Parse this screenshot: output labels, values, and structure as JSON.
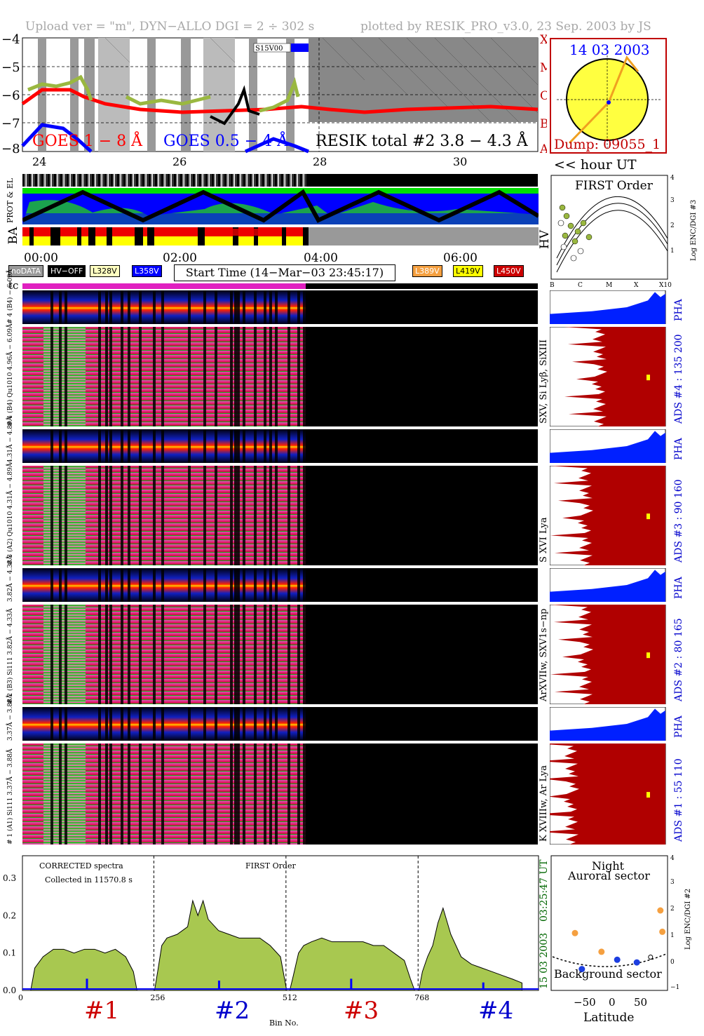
{
  "header": {
    "left": "Upload ver = \"m\", DYN−ALLO DGI =   2 ÷ 302 s",
    "right": "plotted by RESIK_PRO_v3.0, 23 Sep. 2003 by JS"
  },
  "goes": {
    "ytick_labels": [
      "−4",
      "−5",
      "−6",
      "−7",
      "−8"
    ],
    "xtick_labels": [
      "24",
      "26",
      "28",
      "30"
    ],
    "right_letters": [
      "X",
      "M",
      "C",
      "B",
      "A"
    ],
    "legend_goes1": "GOES 1 − 8 Å",
    "legend_goes2": "GOES 0.5 − 4 Å",
    "legend_resik": "RESIK total #2  3.8 − 4.3 Å",
    "tag": "S15V00",
    "hour_label": "<< hour UT",
    "colors": {
      "goes1": "#ff0000",
      "goes2": "#0000ff",
      "resik": "#000000"
    }
  },
  "sun": {
    "date": "14 03 2003",
    "dump": "Dump: 09055_1"
  },
  "status": {
    "left_labels": [
      "PROT & EL",
      "BA"
    ],
    "hv": "HV",
    "time_ticks": [
      "00:00",
      "02:00",
      "04:00",
      "06:00"
    ],
    "badges": [
      "noDATA",
      "HV−OFF",
      "L328V",
      "L358V",
      "L389V",
      "L419V",
      "L450V"
    ],
    "start_time": "Start Time (14−Mar−03 23:45:17)",
    "tc": "tc"
  },
  "first_order": {
    "title": "FIRST Order",
    "ylabel": "Log ENC/DGI #3",
    "yticks": [
      "1",
      "2",
      "3",
      "4"
    ],
    "xticks": [
      "B",
      "C",
      "M",
      "X",
      "X10"
    ]
  },
  "channels": [
    {
      "pha_label": "# 4 (B4)  − 6.09Å",
      "main_label": "# 4 (B4) Qu1010 4.96Å − 6.09Å",
      "line": "SXV, Si Lyβ, SiXIII",
      "ads": "ADS #4 :   135 200",
      "pha": "PHA"
    },
    {
      "pha_label": "4.31Å − 4.89Å",
      "main_label": "# 3 (A2) Qu1010  4.31Å − 4.89Å",
      "line": "S XVI Lya",
      "ads": "ADS #3 :    90 160",
      "pha": "PHA"
    },
    {
      "pha_label": "3.82Å − 4.33Å",
      "main_label": "# 2 (B3) Si111  3.82Å − 4.33Å",
      "line": "ArXVIIw, SXV1s−np",
      "ads": "ADS #2 :    80 165",
      "pha": "PHA"
    },
    {
      "pha_label": "3.37Å − 3.88Å",
      "main_label": "# 1 (A1) Si111  3.37Å − 3.88Å",
      "line": "K XVIIIw, Ar Lya",
      "ads": "ADS #1 :    55 110",
      "pha": "PHA"
    }
  ],
  "spectrum": {
    "title": "CORRECTED spectra",
    "collected": "Collected in 11570.8 s",
    "first_order": "FIRST Order",
    "xlabel": "Bin No.",
    "side_time": "03:25:47 UT",
    "side_date": "15 03 2003",
    "ch_labels": [
      "#1",
      "#2",
      "#3",
      "#4"
    ],
    "ch_colors": [
      "#cc0000",
      "#0000cc",
      "#cc0000",
      "#0000cc"
    ]
  },
  "latitude": {
    "night": "Night",
    "auroral": "Auroral sector",
    "background": "Background sector",
    "xlabel": "Latitude",
    "ylabel": "Log ENC/DGI #2",
    "xticks": [
      "−50",
      "0",
      "50"
    ],
    "yticks": [
      "−1",
      "0",
      "1",
      "2",
      "3",
      "4"
    ]
  },
  "chart_data": {
    "type": "area",
    "x": [
      0,
      8,
      16,
      24,
      40,
      60,
      80,
      100,
      120,
      140,
      160,
      180,
      200,
      215,
      222,
      230,
      240,
      256,
      262,
      270,
      280,
      300,
      320,
      330,
      340,
      350,
      360,
      380,
      400,
      420,
      440,
      460,
      480,
      500,
      512,
      518,
      525,
      535,
      545,
      560,
      580,
      600,
      620,
      640,
      660,
      680,
      700,
      720,
      740,
      752,
      760,
      768,
      775,
      785,
      795,
      805,
      815,
      830,
      850,
      870,
      890,
      910,
      930,
      950,
      968
    ],
    "values": [
      0.0,
      0.0,
      0.0,
      0.06,
      0.09,
      0.11,
      0.11,
      0.1,
      0.11,
      0.11,
      0.1,
      0.11,
      0.09,
      0.05,
      0.0,
      0.0,
      0.0,
      0.0,
      0.05,
      0.12,
      0.14,
      0.15,
      0.17,
      0.24,
      0.2,
      0.24,
      0.19,
      0.16,
      0.15,
      0.14,
      0.14,
      0.14,
      0.12,
      0.09,
      0.0,
      0.0,
      0.04,
      0.1,
      0.12,
      0.13,
      0.14,
      0.13,
      0.13,
      0.13,
      0.13,
      0.12,
      0.12,
      0.1,
      0.08,
      0.03,
      0.0,
      0.0,
      0.05,
      0.09,
      0.12,
      0.18,
      0.22,
      0.15,
      0.09,
      0.07,
      0.06,
      0.05,
      0.04,
      0.03,
      0.02
    ],
    "xticks": [
      0,
      256,
      512,
      768
    ],
    "yticks": [
      0.0,
      0.1,
      0.2,
      0.3
    ],
    "ylim": [
      0,
      0.36
    ],
    "xlim": [
      0,
      1000
    ],
    "xlabel": "Bin No.",
    "pha_bars": [
      {
        "x": 125,
        "v": 0.02
      },
      {
        "x": 381,
        "v": 0.015
      },
      {
        "x": 637,
        "v": 0.02
      },
      {
        "x": 893,
        "v": 0.01
      }
    ],
    "lat_points": [
      {
        "lat": -35,
        "v": 1.15,
        "c": "#f5a040"
      },
      {
        "lat": -8,
        "v": 0.45,
        "c": "#f5a040"
      },
      {
        "lat": 52,
        "v": 2.0,
        "c": "#f5a040"
      },
      {
        "lat": 54,
        "v": 1.2,
        "c": "#f5a040"
      },
      {
        "lat": -28,
        "v": -0.2,
        "c": "#1c3ee0"
      },
      {
        "lat": 8,
        "v": 0.15,
        "c": "#1c3ee0"
      },
      {
        "lat": 28,
        "v": 0.05,
        "c": "#1c3ee0"
      },
      {
        "lat": 42,
        "v": 0.25,
        "c": "#ffffff"
      }
    ]
  }
}
